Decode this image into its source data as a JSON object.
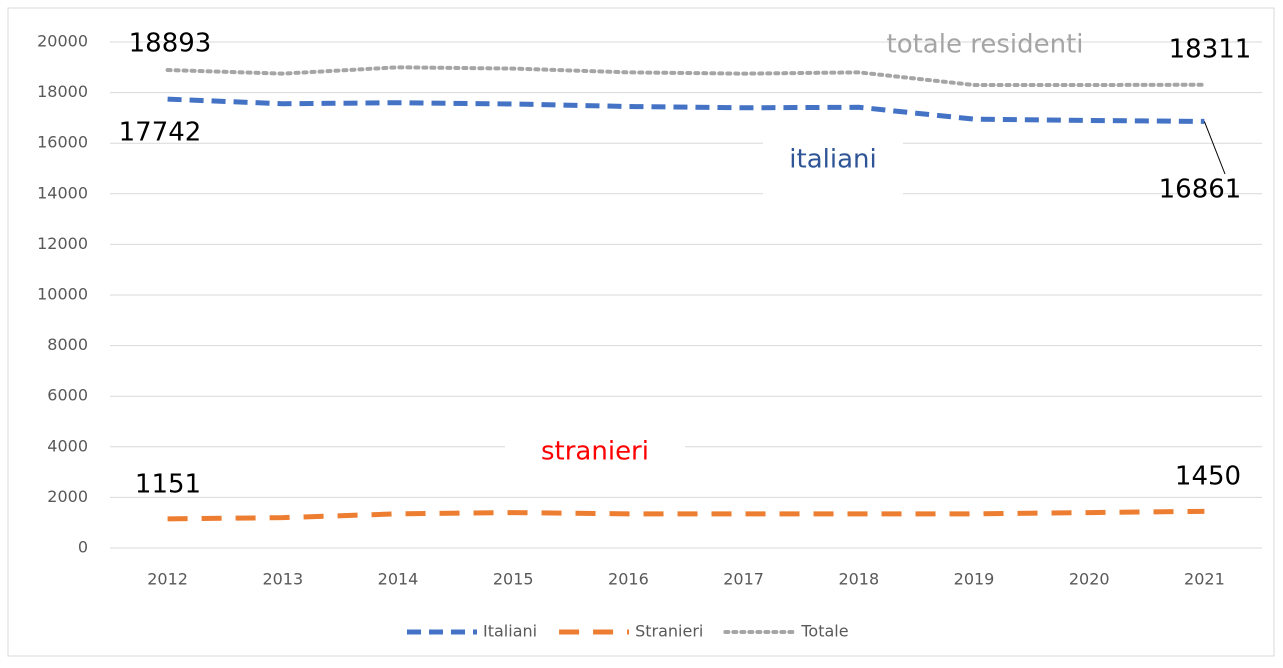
{
  "chart_data": {
    "type": "line",
    "categories": [
      "2012",
      "2013",
      "2014",
      "2015",
      "2016",
      "2017",
      "2018",
      "2019",
      "2020",
      "2021"
    ],
    "series": [
      {
        "name": "Italiani",
        "color": "#4472c4",
        "style": "dash",
        "values": [
          17742,
          17560,
          17600,
          17550,
          17450,
          17400,
          17420,
          16950,
          16900,
          16861
        ]
      },
      {
        "name": "Stranieri",
        "color": "#ed7d31",
        "style": "longdash",
        "values": [
          1151,
          1200,
          1350,
          1400,
          1350,
          1350,
          1350,
          1350,
          1400,
          1450
        ]
      },
      {
        "name": "Totale",
        "color": "#a5a5a5",
        "style": "dot",
        "values": [
          18893,
          18750,
          19000,
          18950,
          18800,
          18750,
          18800,
          18300,
          18300,
          18311
        ]
      }
    ],
    "annotations": [
      {
        "text": "italiani",
        "color": "#2f5597"
      },
      {
        "text": "totale residenti",
        "color": "#a5a5a5"
      },
      {
        "text": "stranieri",
        "color": "#ff0000"
      }
    ],
    "ylim": [
      0,
      20000
    ],
    "yticks": [
      0,
      2000,
      4000,
      6000,
      8000,
      10000,
      12000,
      14000,
      16000,
      18000,
      20000
    ],
    "grid": true,
    "legend": "bottom"
  }
}
